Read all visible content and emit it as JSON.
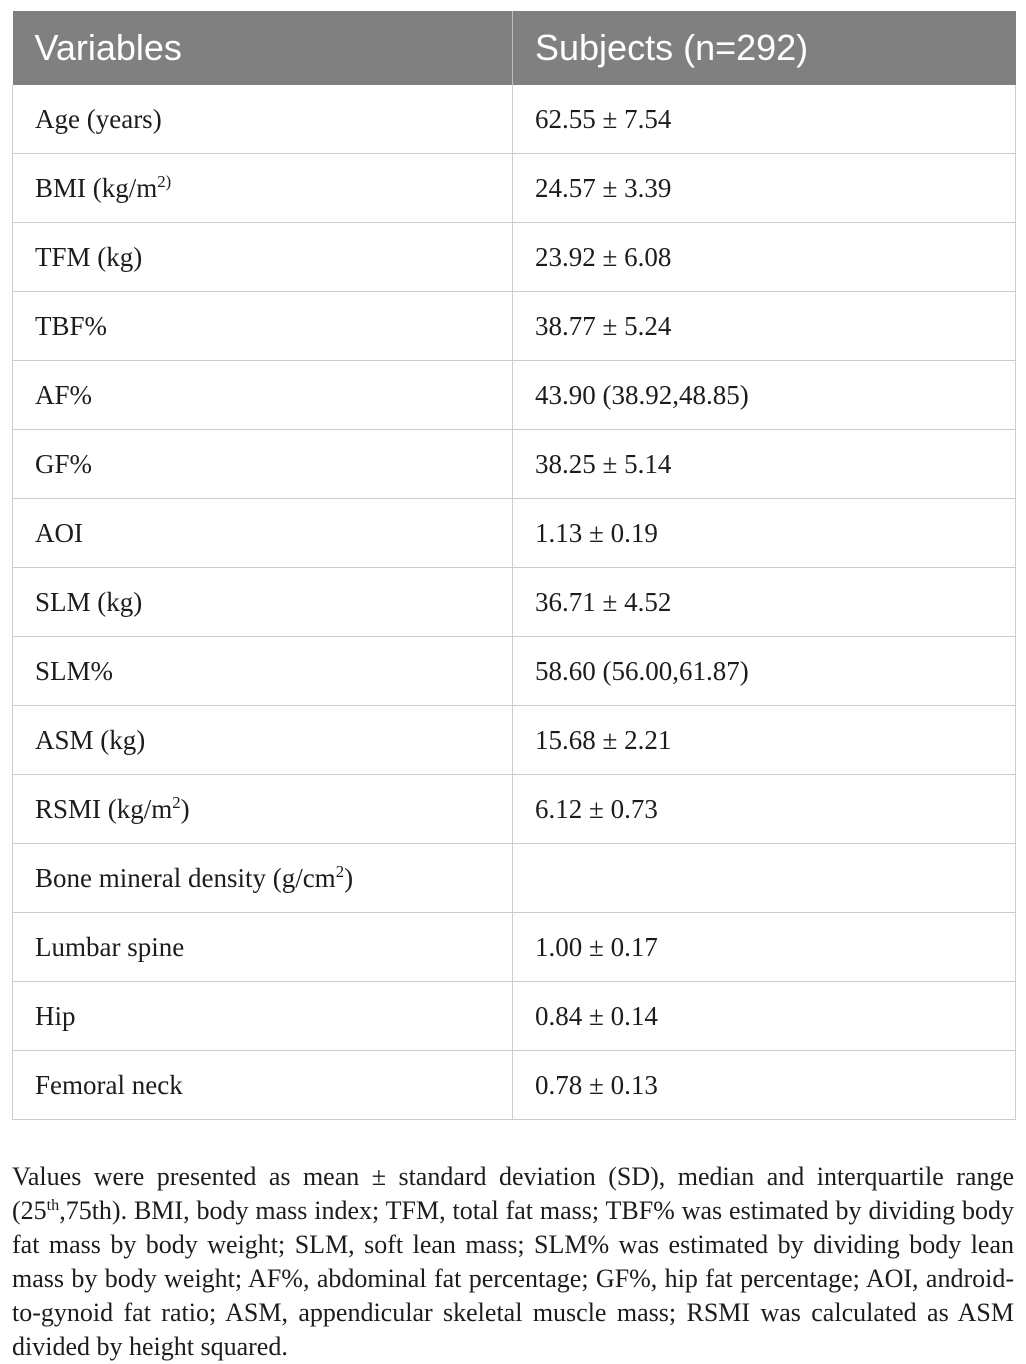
{
  "table": {
    "columns": [
      "Variables",
      "Subjects (n=292)"
    ],
    "rows": [
      {
        "label": "Age (years)",
        "sup": "",
        "label_after": "",
        "value": "62.55 ± 7.54"
      },
      {
        "label": "BMI (kg/m",
        "sup": "2)",
        "label_after": "",
        "value": "24.57 ± 3.39"
      },
      {
        "label": "TFM (kg)",
        "sup": "",
        "label_after": "",
        "value": "23.92 ± 6.08"
      },
      {
        "label": "TBF%",
        "sup": "",
        "label_after": "",
        "value": "38.77 ± 5.24"
      },
      {
        "label": "AF%",
        "sup": "",
        "label_after": "",
        "value": "43.90 (38.92,48.85)"
      },
      {
        "label": "GF%",
        "sup": "",
        "label_after": "",
        "value": "38.25 ± 5.14"
      },
      {
        "label": "AOI",
        "sup": "",
        "label_after": "",
        "value": "1.13 ± 0.19"
      },
      {
        "label": "SLM (kg)",
        "sup": "",
        "label_after": "",
        "value": "36.71 ± 4.52"
      },
      {
        "label": "SLM%",
        "sup": "",
        "label_after": "",
        "value": "58.60 (56.00,61.87)"
      },
      {
        "label": "ASM (kg)",
        "sup": "",
        "label_after": "",
        "value": "15.68 ± 2.21"
      },
      {
        "label": "RSMI (kg/m",
        "sup": "2",
        "label_after": ")",
        "value": "6.12 ± 0.73"
      },
      {
        "label": "Bone mineral density (g/cm",
        "sup": "2",
        "label_after": ")",
        "value": ""
      },
      {
        "label": "Lumbar spine",
        "sup": "",
        "label_after": "",
        "value": "1.00 ± 0.17"
      },
      {
        "label": "Hip",
        "sup": "",
        "label_after": "",
        "value": "0.84 ± 0.14"
      },
      {
        "label": "Femoral neck",
        "sup": "",
        "label_after": "",
        "value": "0.78 ± 0.13"
      }
    ]
  },
  "footnote": {
    "part1": "Values were presented as mean ± standard deviation (SD), median and interquartile range (25",
    "sup": "th",
    "part2": ",75th). BMI, body mass index; TFM, total fat mass; TBF% was estimated by dividing body fat mass by body weight; SLM, soft lean mass; SLM% was estimated by dividing body lean mass by body weight; AF%, abdominal fat percentage; GF%, hip fat percentage; AOI, android-to-gynoid fat ratio; ASM, appendicular skeletal muscle mass; RSMI was calculated as ASM divided by height squared."
  },
  "colors": {
    "header_bg": "#808080",
    "header_text": "#ffffff",
    "border": "#cdcdcd",
    "text": "#1c1c1c"
  }
}
